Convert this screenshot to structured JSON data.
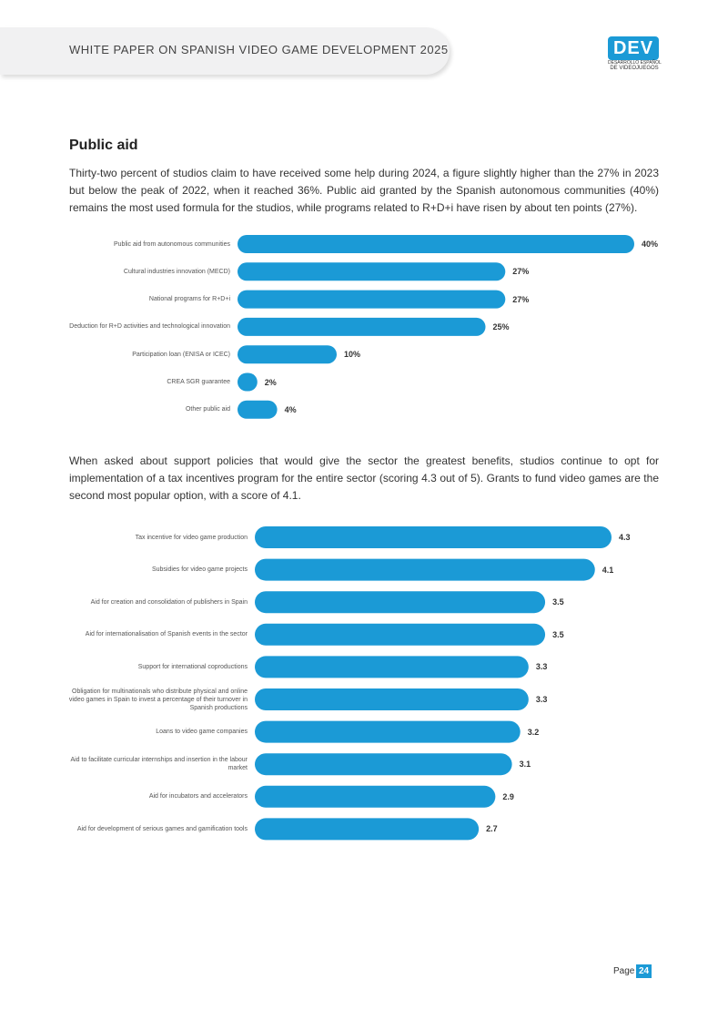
{
  "header": {
    "title": "WHITE PAPER ON SPANISH VIDEO GAME DEVELOPMENT 2025",
    "logo_text": "DEV",
    "logo_subtitle_line1": "DESARROLLO ESPAÑOL",
    "logo_subtitle_line2": "DE VIDEOJUEGOS"
  },
  "section": {
    "heading": "Public aid",
    "paragraph1": "Thirty-two percent of studios claim to have received some help during 2024, a figure slightly higher than the 27% in 2023 but below the peak of 2022, when it reached 36%. Public aid granted by the Spanish autonomous communities (40%) remains the most used formula for the studios, while programs related to R+D+i have risen by about ten points (27%).",
    "paragraph2": "When asked about support policies that would give the sector the greatest benefits, studios continue to opt for implementation of a tax incentives program for the entire sector (scoring 4.3 out of 5). Grants to fund video games are the second most popular option, with a score of 4.1."
  },
  "chart_data": [
    {
      "type": "bar",
      "orientation": "horizontal",
      "categories": [
        "Public aid from autonomous communities",
        "Cultural industries innovation (MECD)",
        "National programs for R+D+i",
        "Deduction for R+D activities and technological innovation",
        "Participation loan (ENISA or ICEC)",
        "CREA SGR guarantee",
        "Other public aid"
      ],
      "values": [
        40,
        27,
        27,
        25,
        10,
        2,
        4
      ],
      "value_labels": [
        "40%",
        "27%",
        "27%",
        "25%",
        "10%",
        "2%",
        "4%"
      ],
      "xlim": [
        0,
        40
      ],
      "bar_color": "#1b9ad6",
      "grid": false
    },
    {
      "type": "bar",
      "orientation": "horizontal",
      "categories": [
        "Tax incentive for video game production",
        "Subsidies for video game projects",
        "Aid for creation and consolidation of publishers in Spain",
        "Aid for internationalisation of Spanish events in the sector",
        "Support for international coproductions",
        "Obligation for multinationals who distribute physical and online video games in Spain to invest a percentage of their turnover in Spanish productions",
        "Loans to video game companies",
        "Aid to facilitate curricular internships and insertion in the labour market",
        "Aid for incubators and accelerators",
        "Aid for development of serious games and gamification tools"
      ],
      "values": [
        4.3,
        4.1,
        3.5,
        3.5,
        3.3,
        3.3,
        3.2,
        3.1,
        2.9,
        2.7
      ],
      "value_labels": [
        "4.3",
        "4.1",
        "3.5",
        "3.5",
        "3.3",
        "3.3",
        "3.2",
        "3.1",
        "2.9",
        "2.7"
      ],
      "xlim": [
        0,
        4.3
      ],
      "bar_color": "#1b9ad6",
      "grid": false
    }
  ],
  "footer": {
    "page_label": "Page",
    "page_number": "24"
  }
}
